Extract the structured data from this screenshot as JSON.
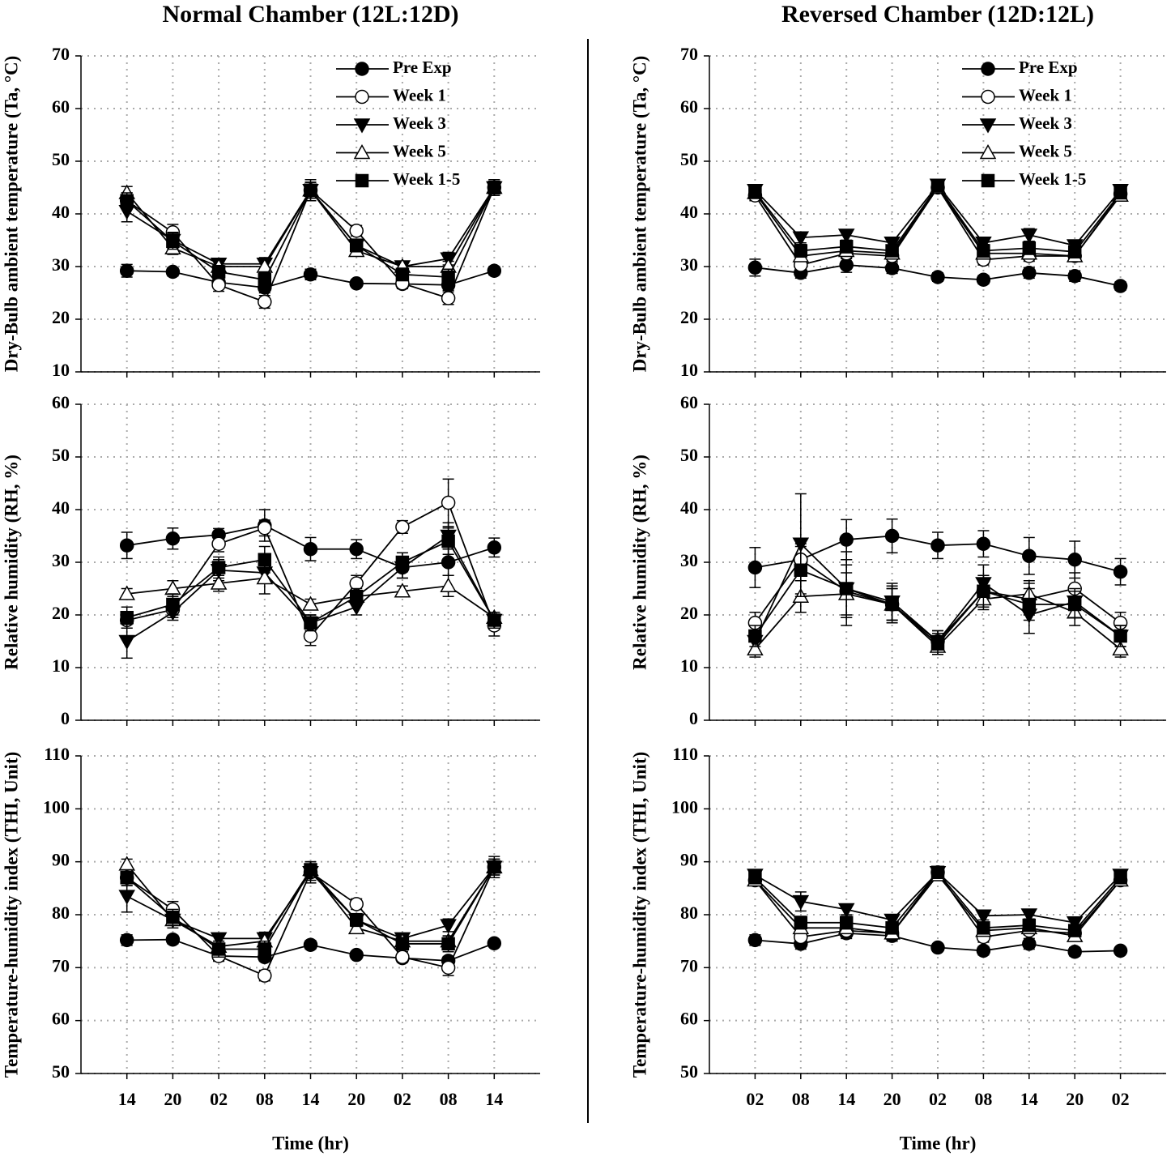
{
  "chart_data": [
    {
      "type": "line",
      "title": "Normal Chamber (12L:12D)",
      "ylabel": "Dry-Bulb ambient temperature (Ta, °C)",
      "categories": [
        null,
        null,
        null,
        null,
        null,
        null,
        null,
        null,
        null
      ],
      "ylim": [
        10,
        70
      ],
      "yticks": [
        10,
        20,
        30,
        40,
        50,
        60,
        70
      ],
      "grid": true,
      "legend": "upper right",
      "series": [
        {
          "name": "Pre Exp",
          "color": "#000000",
          "marker": "circle",
          "marker_fill": "#000000",
          "values": [
            29.2,
            29.0,
            27.0,
            26.0,
            28.5,
            26.8,
            26.7,
            26.5,
            29.2
          ],
          "errors": [
            1.2,
            0.8,
            1.0,
            1.0,
            1.0,
            0.6,
            0.6,
            1.0,
            0.8
          ]
        },
        {
          "name": "Week 1",
          "color": "#000000",
          "marker": "circle",
          "marker_fill": "#ffffff",
          "values": [
            42.5,
            36.5,
            26.5,
            23.3,
            44.5,
            36.8,
            26.8,
            24.0,
            45.0
          ],
          "errors": [
            1.5,
            1.5,
            1.2,
            1.2,
            1.5,
            1.0,
            1.0,
            1.2,
            1.5
          ]
        },
        {
          "name": "Week 3",
          "color": "#000000",
          "marker": "triangle-down",
          "marker_fill": "#000000",
          "values": [
            40.5,
            35.0,
            30.5,
            30.5,
            44.5,
            34.0,
            30.0,
            31.5,
            45.0
          ],
          "errors": [
            2.0,
            1.5,
            1.0,
            1.2,
            2.0,
            1.2,
            1.0,
            1.2,
            1.5
          ]
        },
        {
          "name": "Week 5",
          "color": "#000000",
          "marker": "triangle-up",
          "marker_fill": "#ffffff",
          "values": [
            44.0,
            33.5,
            30.0,
            30.0,
            44.5,
            33.0,
            30.0,
            30.0,
            45.0
          ],
          "errors": [
            1.2,
            1.2,
            1.0,
            1.2,
            1.5,
            1.0,
            1.0,
            1.0,
            1.2
          ]
        },
        {
          "name": "Week 1-5",
          "color": "#000000",
          "marker": "square",
          "marker_fill": "#000000",
          "values": [
            42.5,
            34.8,
            29.0,
            27.5,
            44.5,
            34.0,
            28.5,
            28.0,
            45.0
          ],
          "errors": [
            1.5,
            1.5,
            1.2,
            1.5,
            1.5,
            1.2,
            1.2,
            1.5,
            1.2
          ]
        }
      ]
    },
    {
      "type": "line",
      "title": "Reversed Chamber (12D:12L)",
      "ylabel": "Dry-Bulb ambient temperature (Ta, °C)",
      "categories": [
        null,
        null,
        null,
        null,
        null,
        null,
        null,
        null,
        null
      ],
      "ylim": [
        10,
        70
      ],
      "yticks": [
        10,
        20,
        30,
        40,
        50,
        60,
        70
      ],
      "grid": true,
      "legend": "upper right",
      "series": [
        {
          "name": "Pre Exp",
          "color": "#000000",
          "marker": "circle",
          "marker_fill": "#000000",
          "values": [
            29.8,
            28.8,
            30.3,
            29.7,
            28.0,
            27.5,
            28.8,
            28.2,
            26.3
          ],
          "errors": [
            1.6,
            1.0,
            1.4,
            1.0,
            0.8,
            0.8,
            1.0,
            1.0,
            0.8
          ]
        },
        {
          "name": "Week 1",
          "color": "#000000",
          "marker": "circle",
          "marker_fill": "#ffffff",
          "values": [
            43.5,
            30.3,
            32.5,
            32.0,
            45.0,
            31.3,
            32.0,
            32.0,
            43.8
          ],
          "errors": [
            1.0,
            1.0,
            1.0,
            1.0,
            1.0,
            1.0,
            1.0,
            1.0,
            1.0
          ]
        },
        {
          "name": "Week 3",
          "color": "#000000",
          "marker": "triangle-down",
          "marker_fill": "#000000",
          "values": [
            44.5,
            35.5,
            36.0,
            34.5,
            45.5,
            34.5,
            36.0,
            34.0,
            44.5
          ],
          "errors": [
            1.0,
            1.0,
            1.0,
            1.0,
            1.0,
            1.0,
            1.2,
            1.0,
            1.0
          ]
        },
        {
          "name": "Week 5",
          "color": "#000000",
          "marker": "triangle-up",
          "marker_fill": "#ffffff",
          "values": [
            44.0,
            32.0,
            33.0,
            32.5,
            45.0,
            32.5,
            32.5,
            32.0,
            43.5
          ],
          "errors": [
            1.0,
            1.0,
            1.0,
            1.0,
            1.0,
            1.0,
            1.0,
            1.0,
            1.0
          ]
        },
        {
          "name": "Week 1-5",
          "color": "#000000",
          "marker": "square",
          "marker_fill": "#000000",
          "values": [
            44.2,
            33.0,
            33.8,
            33.0,
            45.3,
            33.0,
            33.5,
            32.8,
            44.0
          ],
          "errors": [
            1.0,
            1.2,
            1.2,
            1.0,
            1.0,
            1.2,
            1.2,
            1.0,
            1.0
          ]
        }
      ]
    },
    {
      "type": "line",
      "ylabel": "Relative humidity (RH, %)",
      "categories": [
        null,
        null,
        null,
        null,
        null,
        null,
        null,
        null,
        null
      ],
      "ylim": [
        0,
        60
      ],
      "yticks": [
        0,
        10,
        20,
        30,
        40,
        50,
        60
      ],
      "grid": true,
      "series": [
        {
          "color": "#000000",
          "marker": "circle",
          "marker_fill": "#000000",
          "values": [
            33.2,
            34.5,
            35.2,
            37.0,
            32.5,
            32.5,
            29.0,
            30.0,
            32.8
          ],
          "errors": [
            2.5,
            2.0,
            1.2,
            3.0,
            2.2,
            1.8,
            2.0,
            2.5,
            1.8
          ]
        },
        {
          "color": "#000000",
          "marker": "circle",
          "marker_fill": "#ffffff",
          "values": [
            19.0,
            21.0,
            33.5,
            36.5,
            16.0,
            26.0,
            36.7,
            41.3,
            18.0
          ],
          "errors": [
            1.5,
            1.5,
            1.5,
            1.5,
            1.8,
            1.5,
            1.2,
            4.5,
            2.0
          ]
        },
        {
          "color": "#000000",
          "marker": "triangle-down",
          "marker_fill": "#000000",
          "values": [
            15.0,
            20.5,
            28.5,
            28.0,
            18.5,
            21.5,
            29.0,
            35.0,
            19.0
          ],
          "errors": [
            3.2,
            1.5,
            2.0,
            2.0,
            1.5,
            1.5,
            2.0,
            2.5,
            1.5
          ]
        },
        {
          "color": "#000000",
          "marker": "triangle-up",
          "marker_fill": "#ffffff",
          "values": [
            24.0,
            25.0,
            26.0,
            27.0,
            22.0,
            23.5,
            24.5,
            25.5,
            19.5
          ],
          "errors": [
            1.0,
            1.5,
            1.5,
            3.0,
            1.0,
            1.0,
            1.0,
            2.0,
            1.0
          ]
        },
        {
          "color": "#000000",
          "marker": "square",
          "marker_fill": "#000000",
          "values": [
            19.5,
            22.0,
            29.0,
            30.5,
            18.5,
            23.5,
            30.0,
            34.0,
            19.0
          ],
          "errors": [
            2.0,
            2.0,
            2.0,
            2.5,
            1.5,
            1.5,
            1.8,
            2.5,
            1.5
          ]
        }
      ]
    },
    {
      "type": "line",
      "ylabel": "Relative humidity (RH, %)",
      "categories": [
        null,
        null,
        null,
        null,
        null,
        null,
        null,
        null,
        null
      ],
      "ylim": [
        0,
        60
      ],
      "yticks": [
        0,
        10,
        20,
        30,
        40,
        50,
        60
      ],
      "grid": true,
      "series": [
        {
          "color": "#000000",
          "marker": "circle",
          "marker_fill": "#000000",
          "values": [
            29.0,
            30.5,
            34.3,
            35.0,
            33.2,
            33.5,
            31.2,
            30.5,
            28.2
          ],
          "errors": [
            3.8,
            2.5,
            3.8,
            3.2,
            2.5,
            2.5,
            3.5,
            3.5,
            2.5
          ]
        },
        {
          "color": "#000000",
          "marker": "circle",
          "marker_fill": "#ffffff",
          "values": [
            18.5,
            30.5,
            24.5,
            22.0,
            15.0,
            24.5,
            23.0,
            25.0,
            18.5
          ],
          "errors": [
            2.0,
            4.0,
            5.0,
            3.5,
            2.0,
            3.0,
            3.0,
            3.0,
            2.0
          ]
        },
        {
          "color": "#000000",
          "marker": "triangle-down",
          "marker_fill": "#000000",
          "values": [
            15.0,
            33.5,
            25.0,
            22.5,
            15.0,
            26.0,
            20.0,
            22.5,
            16.0
          ],
          "errors": [
            2.0,
            9.5,
            7.0,
            3.5,
            2.0,
            3.5,
            3.5,
            2.5,
            2.0
          ]
        },
        {
          "color": "#000000",
          "marker": "triangle-up",
          "marker_fill": "#ffffff",
          "values": [
            13.5,
            23.5,
            24.0,
            22.0,
            14.0,
            23.0,
            24.0,
            20.5,
            13.5
          ],
          "errors": [
            1.5,
            3.0,
            4.0,
            3.0,
            1.5,
            2.0,
            2.5,
            2.5,
            1.5
          ]
        },
        {
          "color": "#000000",
          "marker": "square",
          "marker_fill": "#000000",
          "values": [
            16.0,
            28.5,
            25.0,
            22.0,
            14.5,
            24.5,
            22.0,
            22.0,
            16.0
          ],
          "errors": [
            2.0,
            5.0,
            5.5,
            3.0,
            2.0,
            3.0,
            3.0,
            2.5,
            2.0
          ]
        }
      ]
    },
    {
      "type": "line",
      "xlabel": "Time (hr)",
      "ylabel": "Temperature-humidity index (THI, Unit)",
      "categories": [
        "14",
        "20",
        "02",
        "08",
        "14",
        "20",
        "02",
        "08",
        "14"
      ],
      "ylim": [
        50,
        110
      ],
      "yticks": [
        50,
        60,
        70,
        80,
        90,
        100,
        110
      ],
      "grid": true,
      "series": [
        {
          "color": "#000000",
          "marker": "circle",
          "marker_fill": "#000000",
          "values": [
            75.2,
            75.3,
            72.2,
            72.0,
            74.3,
            72.4,
            71.8,
            71.3,
            74.6
          ],
          "errors": [
            1.0,
            0.8,
            0.8,
            0.8,
            0.8,
            0.6,
            0.6,
            0.8,
            0.6
          ]
        },
        {
          "color": "#000000",
          "marker": "circle",
          "marker_fill": "#ffffff",
          "values": [
            87.0,
            81.0,
            72.2,
            68.5,
            88.0,
            82.0,
            72.0,
            70.0,
            89.0
          ],
          "errors": [
            1.5,
            1.5,
            1.0,
            1.0,
            1.5,
            1.0,
            1.0,
            1.5,
            1.5
          ]
        },
        {
          "color": "#000000",
          "marker": "triangle-down",
          "marker_fill": "#000000",
          "values": [
            83.5,
            79.0,
            75.5,
            75.5,
            88.0,
            79.0,
            75.5,
            78.0,
            89.0
          ],
          "errors": [
            3.0,
            1.5,
            1.0,
            1.2,
            2.0,
            1.2,
            1.0,
            1.2,
            2.0
          ]
        },
        {
          "color": "#000000",
          "marker": "triangle-up",
          "marker_fill": "#ffffff",
          "values": [
            89.5,
            79.0,
            74.0,
            75.0,
            88.5,
            77.5,
            75.0,
            75.0,
            89.0
          ],
          "errors": [
            1.0,
            1.0,
            1.0,
            1.0,
            1.5,
            1.0,
            1.0,
            1.0,
            1.0
          ]
        },
        {
          "color": "#000000",
          "marker": "square",
          "marker_fill": "#000000",
          "values": [
            87.0,
            79.5,
            73.5,
            73.5,
            88.5,
            79.0,
            74.5,
            74.5,
            89.0
          ],
          "errors": [
            1.5,
            1.5,
            1.5,
            1.5,
            1.5,
            1.2,
            1.2,
            1.5,
            1.5
          ]
        }
      ]
    },
    {
      "type": "line",
      "xlabel": "Time (hr)",
      "ylabel": "Temperature-humidity index (THI, Unit)",
      "categories": [
        "02",
        "08",
        "14",
        "20",
        "02",
        "08",
        "14",
        "20",
        "02"
      ],
      "ylim": [
        50,
        110
      ],
      "yticks": [
        50,
        60,
        70,
        80,
        90,
        100,
        110
      ],
      "grid": true,
      "series": [
        {
          "color": "#000000",
          "marker": "circle",
          "marker_fill": "#000000",
          "values": [
            75.2,
            74.5,
            76.5,
            76.0,
            73.8,
            73.2,
            74.5,
            73.0,
            73.2
          ],
          "errors": [
            1.0,
            1.0,
            1.0,
            1.0,
            0.6,
            0.8,
            1.0,
            0.8,
            0.6
          ]
        },
        {
          "color": "#000000",
          "marker": "circle",
          "marker_fill": "#ffffff",
          "values": [
            86.5,
            75.8,
            77.0,
            76.5,
            88.0,
            75.8,
            77.0,
            76.5,
            86.5
          ],
          "errors": [
            0.8,
            1.0,
            1.0,
            0.8,
            0.8,
            1.0,
            0.8,
            0.8,
            0.8
          ]
        },
        {
          "color": "#000000",
          "marker": "triangle-down",
          "marker_fill": "#000000",
          "values": [
            87.5,
            82.5,
            81.0,
            79.0,
            88.0,
            79.8,
            80.0,
            78.5,
            87.5
          ],
          "errors": [
            0.8,
            1.8,
            1.0,
            0.8,
            0.8,
            0.8,
            0.8,
            0.8,
            0.8
          ]
        },
        {
          "color": "#000000",
          "marker": "triangle-up",
          "marker_fill": "#ffffff",
          "values": [
            86.5,
            77.5,
            77.5,
            76.5,
            87.5,
            77.0,
            77.5,
            76.0,
            86.5
          ],
          "errors": [
            0.8,
            1.0,
            1.0,
            0.8,
            0.8,
            0.8,
            0.8,
            0.8,
            0.8
          ]
        },
        {
          "color": "#000000",
          "marker": "square",
          "marker_fill": "#000000",
          "values": [
            87.0,
            78.5,
            78.5,
            77.5,
            88.0,
            77.5,
            78.0,
            77.0,
            87.0
          ],
          "errors": [
            0.8,
            1.2,
            1.2,
            0.8,
            0.8,
            1.0,
            1.0,
            0.8,
            0.8
          ]
        }
      ]
    }
  ]
}
